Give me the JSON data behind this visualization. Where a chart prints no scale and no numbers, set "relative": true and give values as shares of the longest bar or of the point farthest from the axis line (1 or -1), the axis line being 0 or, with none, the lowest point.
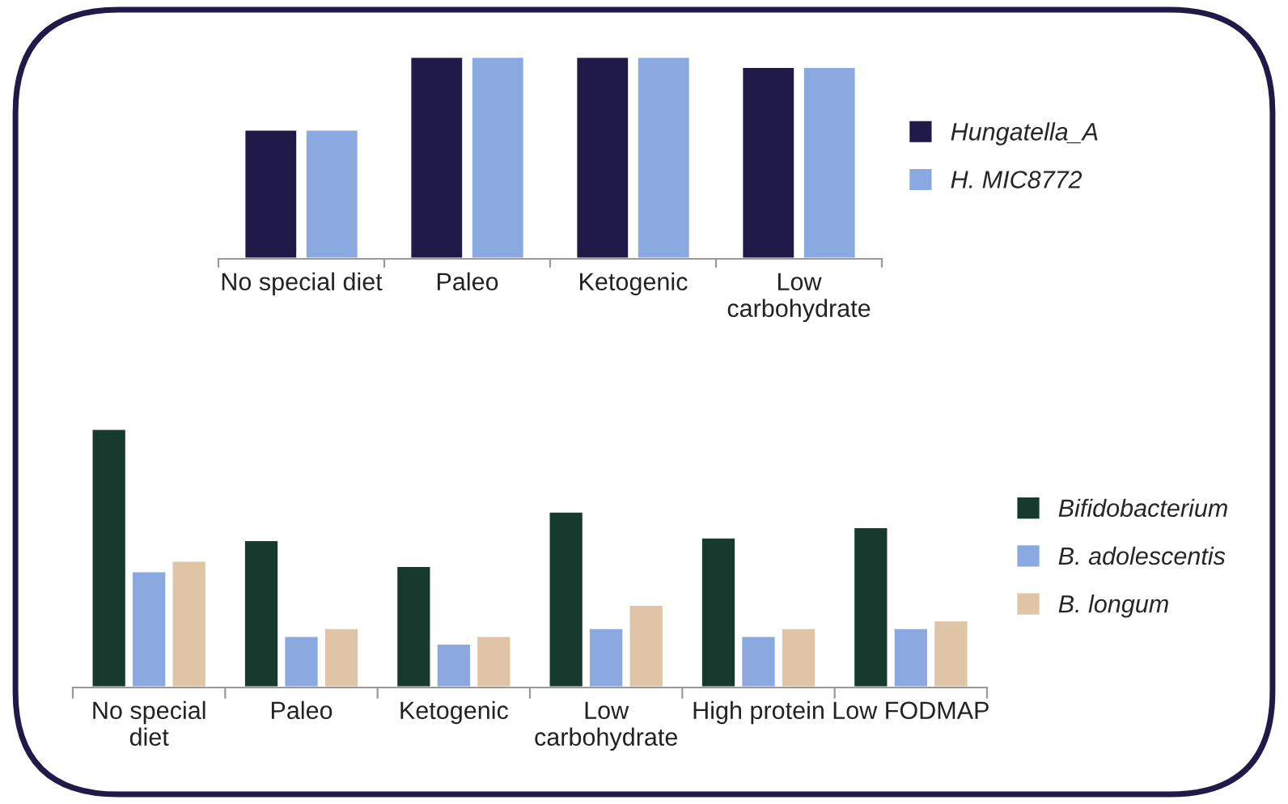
{
  "chart_data": [
    {
      "type": "bar",
      "relative": true,
      "legend": "right",
      "categories": [
        "No special diet",
        "Paleo",
        "Ketogenic",
        "Low\ncarbohydrate"
      ],
      "series": [
        {
          "name": "Hungatella_A",
          "color": "#1f1a48",
          "values": [
            0.64,
            1,
            1,
            0.95
          ]
        },
        {
          "name": "H. MIC8772",
          "color": "#8aa9e0",
          "values": [
            0.64,
            1,
            1,
            0.95
          ]
        }
      ]
    },
    {
      "type": "bar",
      "relative": true,
      "legend": "right",
      "categories": [
        "No special\ndiet",
        "Paleo",
        "Ketogenic",
        "Low\ncarbohydrate",
        "High protein",
        "Low FODMAP"
      ],
      "series": [
        {
          "name": "Bifidobacterium",
          "color": "#163a2e",
          "values": [
            1,
            0.57,
            0.47,
            0.68,
            0.58,
            0.62
          ]
        },
        {
          "name": "B. adolescentis",
          "color": "#8aa9e0",
          "values": [
            0.45,
            0.2,
            0.17,
            0.23,
            0.2,
            0.23
          ]
        },
        {
          "name": "B. longum",
          "color": "#dfc4a6",
          "values": [
            0.49,
            0.23,
            0.2,
            0.32,
            0.23,
            0.26
          ]
        }
      ]
    }
  ]
}
